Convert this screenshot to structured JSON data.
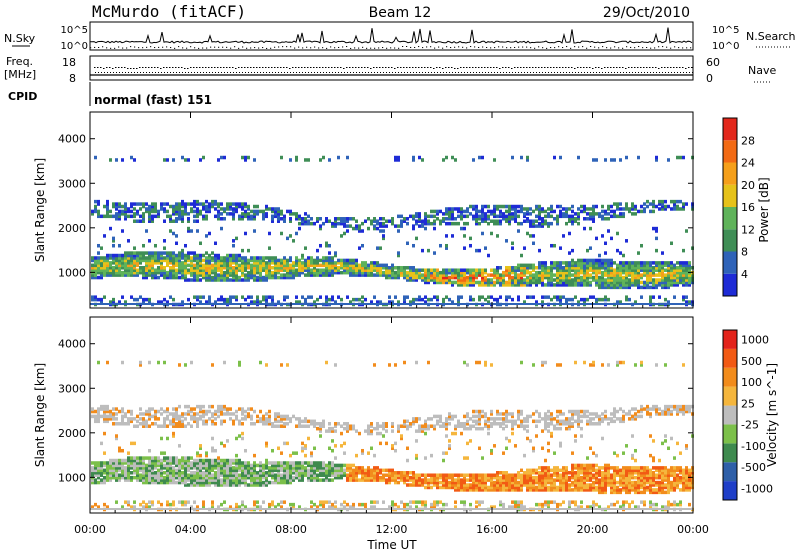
{
  "header": {
    "station": "McMurdo (fitACF)",
    "beam": "Beam 12",
    "date": "29/Oct/2010"
  },
  "left_labels": {
    "nsky": "N.Sky",
    "freq": "Freq.",
    "freq_unit": "[MHz]",
    "cpid": "CPID",
    "nsky_top": "10^5",
    "nsky_bottom": "10^0",
    "freq_top": "18",
    "freq_bottom": "8"
  },
  "right_labels": {
    "nsearch": "N.Search",
    "nave": "Nave",
    "nsearch_top": "10^5",
    "nsearch_bottom": "10^0",
    "nave_top": "60",
    "nave_bottom": "0"
  },
  "cpid_text": "normal (fast) 151",
  "colors": {
    "power_scale": [
      "#1e2bd6",
      "#2f63b8",
      "#3f8e56",
      "#5fb35a",
      "#e6c21a",
      "#f59f1a",
      "#f26a14",
      "#e3281c"
    ],
    "velocity_scale": [
      "#1f3fc8",
      "#2e5fa8",
      "#3e8a4e",
      "#7cc04a",
      "#bdbdbd",
      "#f5b63d",
      "#f28c1c",
      "#f25a14",
      "#e3231b"
    ]
  },
  "chart_data": [
    {
      "type": "heatmap",
      "title": "",
      "quantity": "Power",
      "xlabel": "",
      "ylabel": "Slant Range [km]",
      "x_ticks": [
        "00:00",
        "04:00",
        "08:00",
        "12:00",
        "16:00",
        "20:00",
        "00:00"
      ],
      "y_ticks": [
        1000,
        2000,
        3000,
        4000
      ],
      "ylim": [
        200,
        4600
      ],
      "colorbar": {
        "label": "Power [dB]",
        "ticks": [
          4,
          8,
          12,
          16,
          20,
          24,
          28
        ]
      }
    },
    {
      "type": "heatmap",
      "title": "",
      "quantity": "Velocity",
      "xlabel": "Time UT",
      "ylabel": "Slant Range [km]",
      "x_ticks": [
        "00:00",
        "04:00",
        "08:00",
        "12:00",
        "16:00",
        "20:00",
        "00:00"
      ],
      "y_ticks": [
        1000,
        2000,
        3000,
        4000
      ],
      "ylim": [
        200,
        4600
      ],
      "colorbar": {
        "label": "Velocity [m s^-1]",
        "ticks": [
          1000,
          500,
          100,
          25,
          -25,
          -100,
          -500,
          -1000
        ]
      }
    }
  ]
}
